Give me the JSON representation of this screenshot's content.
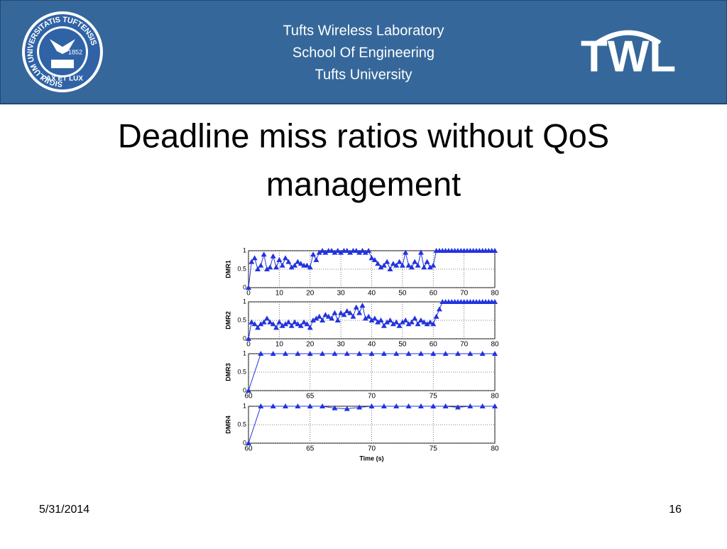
{
  "header": {
    "lines": [
      "Tufts Wireless Laboratory",
      "School Of Engineering",
      "Tufts University"
    ],
    "seal": {
      "ring_text": "SIGILLUM UNIVERSITATIS TUFTENSIS",
      "motto": "PAX ET LUX",
      "year": "1852"
    },
    "logo": "TWL"
  },
  "title": [
    "Deadline miss ratios without QoS",
    "management"
  ],
  "chart_data": [
    {
      "type": "line",
      "ylabel": "DMR1",
      "color": "#2233dd",
      "marker": "triangle",
      "grid": true,
      "x": [
        0,
        1,
        2,
        3,
        4,
        5,
        6,
        7,
        8,
        9,
        10,
        11,
        12,
        13,
        14,
        15,
        16,
        17,
        18,
        19,
        20,
        21,
        22,
        23,
        24,
        25,
        26,
        27,
        28,
        29,
        30,
        31,
        32,
        33,
        34,
        35,
        36,
        37,
        38,
        39,
        40,
        41,
        42,
        43,
        44,
        45,
        46,
        47,
        48,
        49,
        50,
        51,
        52,
        53,
        54,
        55,
        56,
        57,
        58,
        59,
        60,
        61,
        62,
        63,
        64,
        65,
        66,
        67,
        68,
        69,
        70,
        71,
        72,
        73,
        74,
        75,
        76,
        77,
        78,
        79,
        80
      ],
      "values": [
        0,
        0.7,
        0.8,
        0.5,
        0.6,
        0.9,
        0.5,
        0.55,
        0.85,
        0.55,
        0.75,
        0.6,
        0.8,
        0.7,
        0.55,
        0.6,
        0.7,
        0.65,
        0.6,
        0.6,
        0.55,
        0.9,
        0.75,
        0.95,
        1,
        0.95,
        1,
        1,
        0.95,
        1,
        0.95,
        1,
        1,
        0.95,
        1,
        1,
        0.95,
        1,
        0.95,
        1,
        0.8,
        0.75,
        0.65,
        0.55,
        0.6,
        0.7,
        0.5,
        0.65,
        0.6,
        0.7,
        0.6,
        0.95,
        0.6,
        0.55,
        0.7,
        0.6,
        0.95,
        0.55,
        0.7,
        0.55,
        0.6,
        1,
        1,
        1,
        1,
        1,
        1,
        1,
        1,
        1,
        1,
        1,
        1,
        1,
        1,
        1,
        1,
        1,
        1,
        1,
        1
      ],
      "xlim": [
        0,
        80
      ],
      "xticks": [
        0,
        10,
        20,
        30,
        40,
        50,
        60,
        70,
        80
      ],
      "ylim": [
        0,
        1
      ],
      "yticks": [
        0,
        0.5,
        1
      ]
    },
    {
      "type": "line",
      "ylabel": "DMR2",
      "color": "#2233dd",
      "marker": "triangle",
      "grid": true,
      "x": [
        0,
        1,
        2,
        3,
        4,
        5,
        6,
        7,
        8,
        9,
        10,
        11,
        12,
        13,
        14,
        15,
        16,
        17,
        18,
        19,
        20,
        21,
        22,
        23,
        24,
        25,
        26,
        27,
        28,
        29,
        30,
        31,
        32,
        33,
        34,
        35,
        36,
        37,
        38,
        39,
        40,
        41,
        42,
        43,
        44,
        45,
        46,
        47,
        48,
        49,
        50,
        51,
        52,
        53,
        54,
        55,
        56,
        57,
        58,
        59,
        60,
        61,
        62,
        63,
        64,
        65,
        66,
        67,
        68,
        69,
        70,
        71,
        72,
        73,
        74,
        75,
        76,
        77,
        78,
        79,
        80
      ],
      "values": [
        0,
        0.45,
        0.4,
        0.3,
        0.4,
        0.45,
        0.55,
        0.45,
        0.4,
        0.3,
        0.45,
        0.35,
        0.4,
        0.45,
        0.35,
        0.45,
        0.4,
        0.35,
        0.45,
        0.4,
        0.3,
        0.5,
        0.55,
        0.6,
        0.5,
        0.65,
        0.6,
        0.55,
        0.7,
        0.5,
        0.7,
        0.65,
        0.75,
        0.7,
        0.6,
        0.85,
        0.7,
        0.9,
        0.55,
        0.6,
        0.5,
        0.55,
        0.45,
        0.5,
        0.35,
        0.45,
        0.5,
        0.4,
        0.45,
        0.35,
        0.45,
        0.5,
        0.4,
        0.45,
        0.55,
        0.4,
        0.5,
        0.45,
        0.4,
        0.45,
        0.4,
        0.6,
        0.8,
        1,
        1,
        1,
        1,
        1,
        1,
        1,
        1,
        1,
        1,
        1,
        1,
        1,
        1,
        1,
        1,
        1,
        1
      ],
      "xlim": [
        0,
        80
      ],
      "xticks": [
        0,
        10,
        20,
        30,
        40,
        50,
        60,
        70,
        80
      ],
      "ylim": [
        0,
        1
      ],
      "yticks": [
        0,
        0.5,
        1
      ]
    },
    {
      "type": "line",
      "ylabel": "DMR3",
      "color": "#2233dd",
      "marker": "triangle",
      "grid": true,
      "x": [
        60,
        61,
        62,
        63,
        64,
        65,
        66,
        67,
        68,
        69,
        70,
        71,
        72,
        73,
        74,
        75,
        76,
        77,
        78,
        79,
        80
      ],
      "values": [
        0,
        1,
        1,
        1,
        1,
        1,
        1,
        1,
        1,
        1,
        1,
        1,
        1,
        1,
        1,
        1,
        1,
        1,
        1,
        1,
        1
      ],
      "xlim": [
        60,
        80
      ],
      "xticks": [
        60,
        65,
        70,
        75,
        80
      ],
      "ylim": [
        0,
        1
      ],
      "yticks": [
        0,
        0.5,
        1
      ]
    },
    {
      "type": "line",
      "ylabel": "DMR4",
      "xlabel": "Time (s)",
      "color": "#2233dd",
      "marker": "triangle",
      "grid": true,
      "x": [
        60,
        61,
        62,
        63,
        64,
        65,
        66,
        67,
        68,
        69,
        70,
        71,
        72,
        73,
        74,
        75,
        76,
        77,
        78,
        79,
        80
      ],
      "values": [
        0,
        1,
        1,
        1,
        1,
        1,
        1,
        0.95,
        0.93,
        0.97,
        1,
        1,
        1,
        1,
        1,
        1,
        1,
        0.97,
        1,
        1,
        1
      ],
      "xlim": [
        60,
        80
      ],
      "xticks": [
        60,
        65,
        70,
        75,
        80
      ],
      "ylim": [
        0,
        1
      ],
      "yticks": [
        0,
        0.5,
        1
      ]
    }
  ],
  "footer": {
    "date": "5/31/2014",
    "page": "16"
  }
}
